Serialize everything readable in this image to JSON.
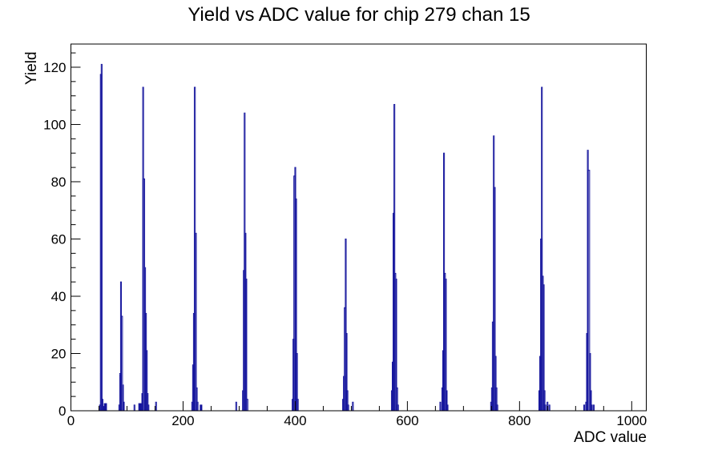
{
  "chart_data": {
    "type": "bar",
    "title": "Yield vs ADC value for chip 279 chan 15",
    "xlabel": "ADC value",
    "ylabel": "Yield",
    "xlim": [
      0,
      1026
    ],
    "ylim": [
      0,
      128.1
    ],
    "x_major_ticks": [
      0,
      200,
      400,
      600,
      800,
      1000
    ],
    "x_minor_step": 50,
    "y_major_ticks": [
      0,
      20,
      40,
      60,
      80,
      100,
      120
    ],
    "y_minor_step": 5,
    "grid": false,
    "legend": false,
    "line_color": "#15159d",
    "frame_color": "#000000",
    "background_color": "#ffffff",
    "peaks": [
      {
        "adc": 55,
        "yield": 121
      },
      {
        "adc": 90,
        "yield": 45
      },
      {
        "adc": 129,
        "yield": 113
      },
      {
        "adc": 221,
        "yield": 113
      },
      {
        "adc": 310,
        "yield": 104
      },
      {
        "adc": 400,
        "yield": 85
      },
      {
        "adc": 490,
        "yield": 60
      },
      {
        "adc": 577,
        "yield": 107
      },
      {
        "adc": 665,
        "yield": 90
      },
      {
        "adc": 754,
        "yield": 96
      },
      {
        "adc": 840,
        "yield": 113
      },
      {
        "adc": 922,
        "yield": 91
      }
    ],
    "clusters": [
      {
        "bars": [
          [
            51,
            1.5,
            2
          ],
          [
            52.5,
            1.5,
            117.5
          ],
          [
            54,
            1.5,
            121
          ],
          [
            55.5,
            1.5,
            4
          ],
          [
            57,
            1.5,
            1.5
          ]
        ]
      },
      {
        "bars": [
          [
            85.5,
            1.5,
            2
          ],
          [
            87,
            1.5,
            13
          ],
          [
            88.5,
            1.5,
            45
          ],
          [
            90,
            2,
            33
          ],
          [
            92,
            1.5,
            9
          ],
          [
            93.5,
            1.5,
            3
          ]
        ]
      },
      {
        "bars": [
          [
            112.5,
            1.2,
            2
          ]
        ]
      },
      {
        "bars": [
          [
            126.5,
            1.5,
            6
          ],
          [
            128,
            1.5,
            113
          ],
          [
            129.5,
            2,
            81
          ],
          [
            131.5,
            1.5,
            50
          ],
          [
            133,
            1.5,
            34
          ],
          [
            134.5,
            1.5,
            21
          ],
          [
            136,
            1.5,
            6
          ],
          [
            137.5,
            1.5,
            2
          ]
        ]
      },
      {
        "bars": [
          [
            151,
            1.2,
            3
          ]
        ]
      },
      {
        "bars": [
          [
            215.5,
            1.5,
            3
          ],
          [
            217,
            1.5,
            16
          ],
          [
            218.5,
            1.5,
            34
          ],
          [
            220,
            1.8,
            113
          ],
          [
            221.8,
            1.8,
            62
          ],
          [
            223.6,
            1.5,
            8
          ],
          [
            225.1,
            1.5,
            3
          ]
        ]
      },
      {
        "bars": [
          [
            294,
            1.2,
            3
          ]
        ]
      },
      {
        "bars": [
          [
            306,
            1.5,
            7
          ],
          [
            307.5,
            1.5,
            49
          ],
          [
            309,
            1.5,
            104
          ],
          [
            310.5,
            1.5,
            62
          ],
          [
            312,
            1.5,
            46
          ],
          [
            313.5,
            2,
            4
          ]
        ]
      },
      {
        "bars": [
          [
            394.5,
            1.5,
            4
          ],
          [
            396,
            1.5,
            25
          ],
          [
            397.5,
            1.8,
            82
          ],
          [
            399.3,
            1.5,
            85
          ],
          [
            400.8,
            1.5,
            74
          ],
          [
            402.3,
            1.5,
            20
          ],
          [
            403.8,
            1.5,
            4
          ]
        ]
      },
      {
        "bars": [
          [
            484.5,
            1.5,
            4
          ],
          [
            486,
            1.5,
            12
          ],
          [
            487.5,
            1.8,
            36
          ],
          [
            489.3,
            1.5,
            60
          ],
          [
            490.8,
            1.5,
            27
          ],
          [
            492.3,
            1.5,
            7
          ],
          [
            493.8,
            1.5,
            2
          ]
        ]
      },
      {
        "bars": [
          [
            502,
            1.2,
            3
          ]
        ]
      },
      {
        "bars": [
          [
            571.5,
            1.5,
            7
          ],
          [
            573,
            1.5,
            17
          ],
          [
            574.5,
            1.5,
            69
          ],
          [
            576,
            1.5,
            107
          ],
          [
            577.5,
            1.8,
            48
          ],
          [
            579.3,
            1.5,
            46
          ],
          [
            581,
            1.5,
            8
          ],
          [
            582.5,
            1.5,
            2
          ]
        ]
      },
      {
        "bars": [
          [
            658,
            1.2,
            3
          ]
        ]
      },
      {
        "bars": [
          [
            661.5,
            1.5,
            8
          ],
          [
            663,
            1.5,
            21
          ],
          [
            664.5,
            1.5,
            90
          ],
          [
            666,
            1.8,
            48
          ],
          [
            667.8,
            1.5,
            46
          ],
          [
            669.3,
            1.5,
            7
          ],
          [
            670.8,
            1.5,
            2
          ]
        ]
      },
      {
        "bars": [
          [
            748.5,
            1.5,
            3
          ],
          [
            750,
            1.5,
            8
          ],
          [
            751.5,
            1.8,
            31
          ],
          [
            753.3,
            1.5,
            96
          ],
          [
            754.8,
            1.8,
            78
          ],
          [
            756.6,
            1.5,
            19
          ],
          [
            758.1,
            1.5,
            8
          ],
          [
            759.6,
            1.5,
            2
          ]
        ]
      },
      {
        "bars": [
          [
            834.5,
            1.5,
            7
          ],
          [
            836,
            1.5,
            19
          ],
          [
            837.5,
            1.5,
            60
          ],
          [
            839,
            1.5,
            113
          ],
          [
            840.5,
            1.8,
            47
          ],
          [
            842.3,
            1.5,
            44
          ],
          [
            843.8,
            1.5,
            7
          ],
          [
            845.3,
            1.5,
            2
          ]
        ]
      },
      {
        "bars": [
          [
            849,
            1.2,
            3
          ],
          [
            852.5,
            1.2,
            2
          ]
        ]
      },
      {
        "bars": [
          [
            914.5,
            1.2,
            2
          ]
        ]
      },
      {
        "bars": [
          [
            918,
            1.5,
            3
          ],
          [
            919.5,
            1.5,
            27
          ],
          [
            921,
            1.5,
            91
          ],
          [
            922.5,
            2.5,
            84
          ],
          [
            925,
            1.5,
            20
          ],
          [
            926.5,
            1.5,
            7
          ],
          [
            928,
            1.5,
            2
          ]
        ]
      },
      {
        "bars": [
          [
            931.5,
            1.2,
            2
          ]
        ]
      }
    ],
    "filled_blobs": [
      [
        59.5,
        4,
        2.5
      ],
      [
        121,
        4.5,
        2.5
      ],
      [
        230.5,
        3,
        2
      ]
    ]
  }
}
